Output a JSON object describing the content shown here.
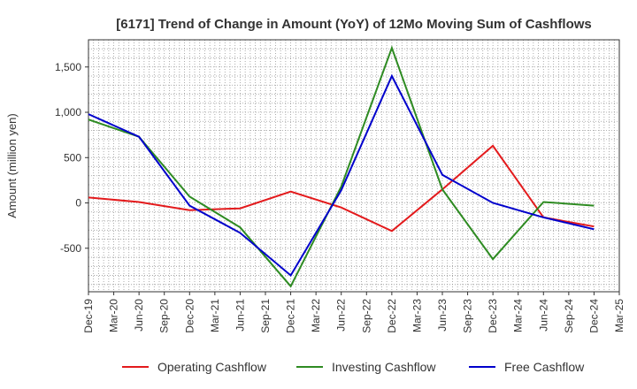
{
  "chart_data": {
    "type": "line",
    "title": "[6171]  Trend of Change in Amount (YoY) of 12Mo Moving Sum of Cashflows",
    "xlabel": "",
    "ylabel": "Amount (million yen)",
    "ylim": [
      -980,
      1800
    ],
    "yticks": [
      -500,
      0,
      500,
      1000,
      1500
    ],
    "ytick_labels": [
      "-500",
      "0",
      "500",
      "1,000",
      "1,500"
    ],
    "grid": true,
    "legend_position": "bottom",
    "categories": [
      "Dec-19",
      "Mar-20",
      "Jun-20",
      "Sep-20",
      "Dec-20",
      "Mar-21",
      "Jun-21",
      "Sep-21",
      "Dec-21",
      "Mar-22",
      "Jun-22",
      "Sep-22",
      "Dec-22",
      "Mar-23",
      "Jun-23",
      "Sep-23",
      "Dec-23",
      "Mar-24",
      "Jun-24",
      "Sep-24",
      "Dec-24",
      "Mar-25"
    ],
    "series": [
      {
        "name": "Operating Cashflow",
        "color": "#e31a1c",
        "values": [
          60,
          null,
          10,
          null,
          -80,
          null,
          -60,
          null,
          125,
          null,
          -50,
          null,
          -310,
          null,
          150,
          null,
          630,
          null,
          -160,
          null,
          -260,
          null
        ]
      },
      {
        "name": "Investing Cashflow",
        "color": "#2e8b22",
        "values": [
          920,
          null,
          730,
          null,
          70,
          null,
          -270,
          null,
          -920,
          null,
          180,
          null,
          1710,
          null,
          150,
          null,
          -620,
          null,
          10,
          null,
          -30,
          null
        ]
      },
      {
        "name": "Free Cashflow",
        "color": "#0000cc",
        "values": [
          980,
          null,
          730,
          null,
          -30,
          null,
          -330,
          null,
          -800,
          null,
          140,
          null,
          1400,
          null,
          310,
          null,
          0,
          null,
          -160,
          null,
          -290,
          null
        ]
      }
    ]
  }
}
